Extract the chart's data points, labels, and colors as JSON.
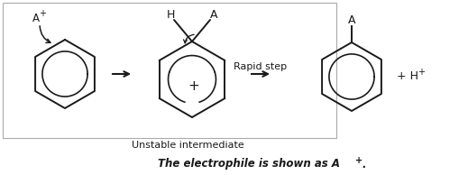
{
  "bg_color": "#ffffff",
  "line_color": "#1a1a1a",
  "border_color": "#999999",
  "caption_text": "The electrophile is shown as A",
  "caption_super": "+",
  "caption_end": ".",
  "unstable_label": "Unstable intermediate",
  "rapid_step_label": "Rapid step",
  "fig_width": 5.19,
  "fig_height": 1.94,
  "dpi": 100
}
